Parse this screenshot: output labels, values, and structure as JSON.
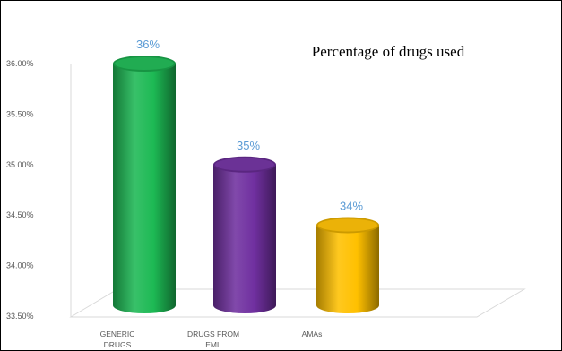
{
  "chart_data": {
    "type": "bar",
    "title": "Percentage of drugs used",
    "categories": [
      "GENERIC DRUGS",
      "DRUGS FROM EML",
      "AMAs"
    ],
    "values": [
      36.0,
      35.0,
      34.4
    ],
    "data_labels": [
      "36%",
      "35%",
      "34%"
    ],
    "colors": [
      "#1db954",
      "#7030a0",
      "#ffc000"
    ],
    "y_ticks": [
      "33.50%",
      "34.00%",
      "34.50%",
      "35.00%",
      "35.50%",
      "36.00%"
    ],
    "ylim": [
      33.5,
      36.0
    ],
    "grid": false,
    "style": "3d-cylinder",
    "legend": "none"
  }
}
